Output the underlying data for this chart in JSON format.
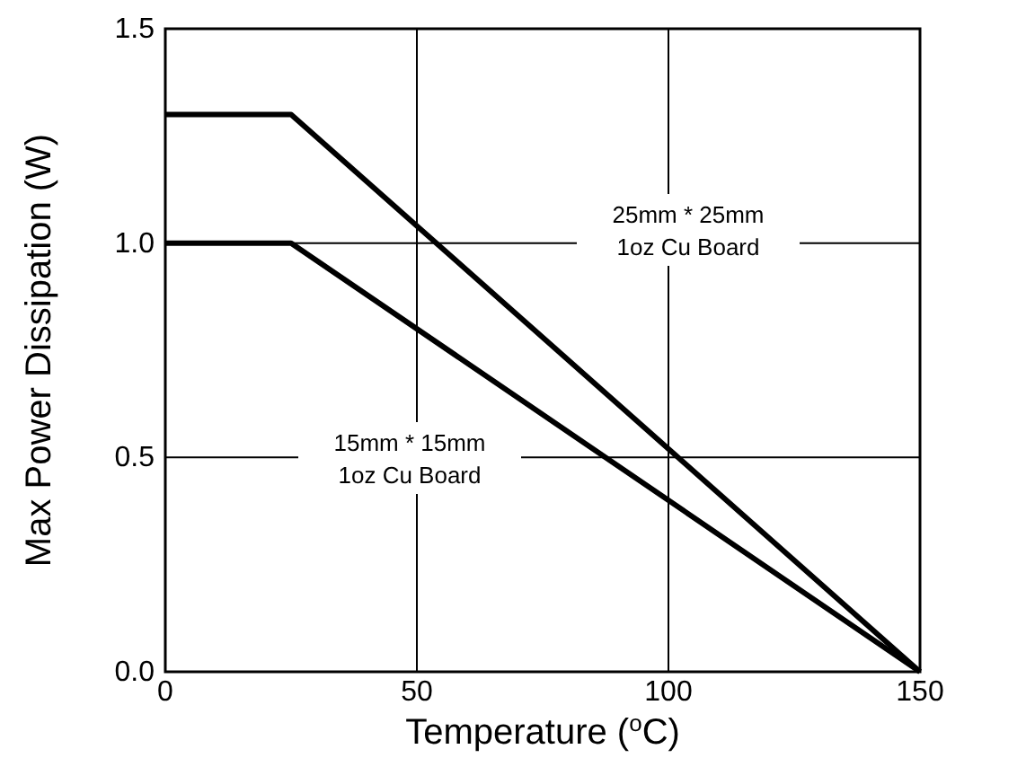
{
  "chart_data": {
    "type": "line",
    "xlabel": "Temperature ($^{o}$C)",
    "ylabel": "Max Power Dissipation (W)",
    "xlim": [
      0,
      150
    ],
    "ylim": [
      0,
      1.5
    ],
    "xticks": [
      0,
      50,
      100,
      150
    ],
    "yticks": [
      {
        "value": 0,
        "label": "0.0"
      },
      {
        "value": 0.5,
        "label": "0.5"
      },
      {
        "value": 1,
        "label": "1.0"
      },
      {
        "value": 1.5,
        "label": "1.5"
      }
    ],
    "grid": true,
    "marker": "none",
    "line_style": "solid",
    "series": [
      {
        "color": "#000000",
        "x": [
          0,
          25,
          150
        ],
        "values": [
          1.3,
          1.3,
          0
        ]
      },
      {
        "color": "#000000",
        "x": [
          0,
          25,
          150
        ],
        "values": [
          1.0,
          1.0,
          0
        ]
      }
    ],
    "annotations": [
      "25mm * 25mm\n1oz Cu Board",
      "15mm * 15mm\n1oz Cu Board"
    ]
  }
}
